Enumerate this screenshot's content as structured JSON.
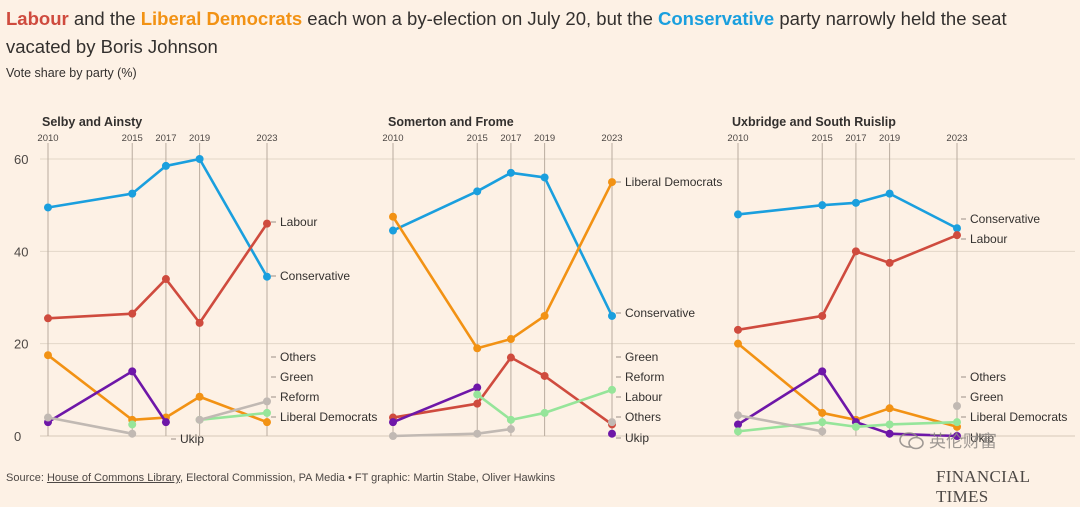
{
  "headline": {
    "lab": "Labour",
    "t1": " and the ",
    "lib": "Liberal Democrats",
    "t2": " each won a by-election on July 20, but the ",
    "con": "Conservative",
    "t3": " party narrowly held the seat vacated by Boris Johnson"
  },
  "subtitle": "Vote share by party (%)",
  "footer": {
    "prefix": "Source: ",
    "link": "House of Commons Library",
    "rest": ", Electoral Commission, PA Media • FT graphic: Martin Stabe, Oliver Hawkins"
  },
  "ft_logo": "FINANCIAL TIMES",
  "watermark": "英伦财富",
  "colors": {
    "Conservative": "#1a9fde",
    "Labour": "#cf4b3e",
    "Liberal Democrats": "#f29214",
    "Ukip": "#6e17a8",
    "Green": "#96e59a",
    "Reform": "#96e59a",
    "Others": "#c1b9b3",
    "grid": "#e3d6c8",
    "yearline": "#b9ac9f"
  },
  "chart_data": [
    {
      "type": "line",
      "title": "Selby and Ainsty",
      "years": [
        2010,
        2015,
        2017,
        2019,
        2023
      ],
      "yticks": [
        0,
        20,
        40,
        60
      ],
      "ylim": [
        0,
        60
      ],
      "series": [
        {
          "name": "Conservative",
          "label": "Conservative",
          "values": [
            49.5,
            52.5,
            58.5,
            60,
            34.5
          ]
        },
        {
          "name": "Labour",
          "label": "Labour",
          "values": [
            25.5,
            26.5,
            34,
            24.5,
            46
          ]
        },
        {
          "name": "Liberal Democrats",
          "label": "Liberal Democrats",
          "values": [
            17.5,
            3.5,
            4,
            8.5,
            3
          ]
        },
        {
          "name": "Ukip",
          "label": "Ukip",
          "values": [
            3,
            14,
            3,
            null,
            null
          ]
        },
        {
          "name": "Green",
          "label": "Green",
          "values": [
            null,
            2.5,
            null,
            3.5,
            5
          ]
        },
        {
          "name": "Others",
          "label": "Others",
          "values": [
            4,
            0.5,
            null,
            3.5,
            7.5
          ]
        }
      ]
    },
    {
      "type": "line",
      "title": "Somerton and Frome",
      "years": [
        2010,
        2015,
        2017,
        2019,
        2023
      ],
      "yticks": [
        0,
        20,
        40,
        60
      ],
      "ylim": [
        0,
        60
      ],
      "series": [
        {
          "name": "Conservative",
          "label": "Conservative",
          "values": [
            44.5,
            53,
            57,
            56,
            26
          ]
        },
        {
          "name": "Labour",
          "label": "Labour",
          "values": [
            4,
            7,
            17,
            13,
            2.5
          ]
        },
        {
          "name": "Liberal Democrats",
          "label": "Liberal Democrats",
          "values": [
            47.5,
            19,
            21,
            26,
            55
          ]
        },
        {
          "name": "Ukip",
          "label": "Ukip",
          "values": [
            3,
            10.5,
            null,
            null,
            0.5
          ]
        },
        {
          "name": "Green",
          "label": "Green",
          "values": [
            null,
            9,
            3.5,
            5,
            10
          ]
        },
        {
          "name": "Others",
          "label": "Others",
          "values": [
            0,
            0.5,
            1.5,
            null,
            3
          ]
        }
      ]
    },
    {
      "type": "line",
      "title": "Uxbridge and South Ruislip",
      "years": [
        2010,
        2015,
        2017,
        2019,
        2023
      ],
      "yticks": [
        0,
        20,
        40,
        60
      ],
      "ylim": [
        0,
        60
      ],
      "series": [
        {
          "name": "Conservative",
          "label": "Conservative",
          "values": [
            48,
            50,
            50.5,
            52.5,
            45
          ]
        },
        {
          "name": "Labour",
          "label": "Labour",
          "values": [
            23,
            26,
            40,
            37.5,
            43.5
          ]
        },
        {
          "name": "Liberal Democrats",
          "label": "Liberal Democrats",
          "values": [
            20,
            5,
            3.5,
            6,
            2
          ]
        },
        {
          "name": "Ukip",
          "label": "Ukip",
          "values": [
            2.5,
            14,
            3,
            0.5,
            0
          ]
        },
        {
          "name": "Green",
          "label": "Green",
          "values": [
            1,
            3,
            2,
            2.5,
            3
          ]
        },
        {
          "name": "Others",
          "label": "Others",
          "values": [
            4.5,
            1,
            null,
            null,
            6.5
          ]
        }
      ]
    }
  ],
  "right_labels": [
    {
      "Labour": "Labour",
      "Conservative": "Conservative",
      "Others": "Others",
      "Green": "Green",
      "Reform": "Reform",
      "Liberal Democrats": "Liberal Democrats",
      "Ukip": "Ukip"
    },
    {
      "Liberal Democrats": "Liberal Democrats",
      "Conservative": "Conservative",
      "Green": "Green",
      "Reform": "Reform",
      "Labour": "Labour",
      "Others": "Others",
      "Ukip": "Ukip"
    },
    {
      "Conservative": "Conservative",
      "Labour": "Labour",
      "Others": "Others",
      "Green": "Green",
      "Liberal Democrats": "Liberal Democrats",
      "Ukip": "Ukip"
    }
  ]
}
